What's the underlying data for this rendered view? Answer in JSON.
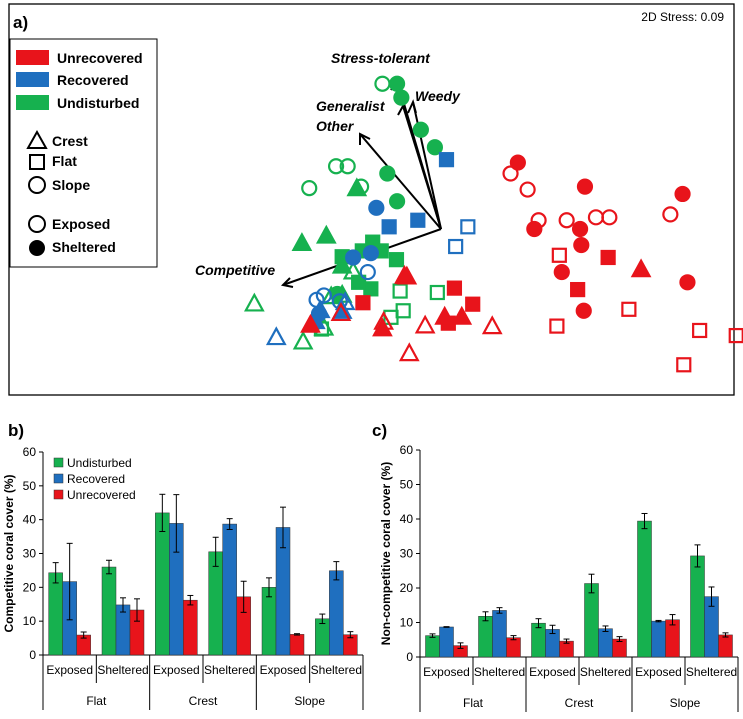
{
  "colors": {
    "undisturbed": "#16b14f",
    "recovered": "#1f6fbf",
    "unrecovered": "#e8141b"
  },
  "chart_data": [
    {
      "panel_label": "a)",
      "type": "scatter",
      "stress_label": "2D Stress: 0.09",
      "legend": {
        "groups": [
          "Unrecovered",
          "Recovered",
          "Undisturbed"
        ],
        "habitats": [
          "Crest",
          "Flat",
          "Slope"
        ],
        "exposure": [
          "Exposed",
          "Sheltered"
        ]
      },
      "vectors": [
        {
          "name": "Stress-tolerant",
          "dx": -0.28,
          "dy": 1.49
        },
        {
          "name": "Weedy",
          "dx": -0.18,
          "dy": 1.16
        },
        {
          "name": "Generalist",
          "dx": -0.35,
          "dy": 1.08
        },
        {
          "name": "Other",
          "dx": -0.8,
          "dy": 0.98
        },
        {
          "name": "Competitive",
          "dx": -1.6,
          "dy": -0.56
        }
      ],
      "points": [
        {
          "x": -0.96,
          "y": 1.99,
          "group": "Undisturbed",
          "habitat": "Slope",
          "exposure": "Exposed"
        },
        {
          "x": -0.72,
          "y": 1.99,
          "group": "Undisturbed",
          "habitat": "Slope",
          "exposure": "Sheltered"
        },
        {
          "x": -0.65,
          "y": 1.8,
          "group": "Undisturbed",
          "habitat": "Slope",
          "exposure": "Sheltered"
        },
        {
          "x": -0.33,
          "y": 1.36,
          "group": "Undisturbed",
          "habitat": "Slope",
          "exposure": "Sheltered"
        },
        {
          "x": -0.1,
          "y": 1.12,
          "group": "Undisturbed",
          "habitat": "Slope",
          "exposure": "Sheltered"
        },
        {
          "x": -1.72,
          "y": 0.86,
          "group": "Undisturbed",
          "habitat": "Slope",
          "exposure": "Exposed"
        },
        {
          "x": -1.53,
          "y": 0.86,
          "group": "Undisturbed",
          "habitat": "Slope",
          "exposure": "Exposed"
        },
        {
          "x": -2.16,
          "y": 0.56,
          "group": "Undisturbed",
          "habitat": "Slope",
          "exposure": "Exposed"
        },
        {
          "x": -1.31,
          "y": 0.58,
          "group": "Undisturbed",
          "habitat": "Slope",
          "exposure": "Exposed"
        },
        {
          "x": -0.88,
          "y": 0.76,
          "group": "Undisturbed",
          "habitat": "Slope",
          "exposure": "Sheltered"
        },
        {
          "x": -0.72,
          "y": 0.38,
          "group": "Undisturbed",
          "habitat": "Slope",
          "exposure": "Sheltered"
        },
        {
          "x": -1.7,
          "y": -0.89,
          "group": "Undisturbed",
          "habitat": "Slope",
          "exposure": "Sheltered"
        },
        {
          "x": -1.38,
          "y": 0.56,
          "group": "Undisturbed",
          "habitat": "Crest",
          "exposure": "Sheltered"
        },
        {
          "x": -1.88,
          "y": -0.09,
          "group": "Undisturbed",
          "habitat": "Crest",
          "exposure": "Sheltered"
        },
        {
          "x": -2.28,
          "y": -0.19,
          "group": "Undisturbed",
          "habitat": "Crest",
          "exposure": "Sheltered"
        },
        {
          "x": -1.62,
          "y": -0.5,
          "group": "Undisturbed",
          "habitat": "Crest",
          "exposure": "Sheltered"
        },
        {
          "x": -1.44,
          "y": -0.58,
          "group": "Undisturbed",
          "habitat": "Crest",
          "exposure": "Exposed"
        },
        {
          "x": -3.06,
          "y": -1.02,
          "group": "Undisturbed",
          "habitat": "Crest",
          "exposure": "Exposed"
        },
        {
          "x": -1.8,
          "y": -0.92,
          "group": "Undisturbed",
          "habitat": "Crest",
          "exposure": "Exposed"
        },
        {
          "x": -1.62,
          "y": -0.9,
          "group": "Undisturbed",
          "habitat": "Crest",
          "exposure": "Exposed"
        },
        {
          "x": -1.92,
          "y": -1.35,
          "group": "Undisturbed",
          "habitat": "Crest",
          "exposure": "Exposed"
        },
        {
          "x": -2.26,
          "y": -1.54,
          "group": "Undisturbed",
          "habitat": "Crest",
          "exposure": "Exposed"
        },
        {
          "x": -1.62,
          "y": -0.38,
          "group": "Undisturbed",
          "habitat": "Flat",
          "exposure": "Sheltered"
        },
        {
          "x": -1.29,
          "y": -0.3,
          "group": "Undisturbed",
          "habitat": "Flat",
          "exposure": "Sheltered"
        },
        {
          "x": -0.98,
          "y": -0.3,
          "group": "Undisturbed",
          "habitat": "Flat",
          "exposure": "Sheltered"
        },
        {
          "x": -0.73,
          "y": -0.42,
          "group": "Undisturbed",
          "habitat": "Flat",
          "exposure": "Sheltered"
        },
        {
          "x": -1.35,
          "y": -0.73,
          "group": "Undisturbed",
          "habitat": "Flat",
          "exposure": "Sheltered"
        },
        {
          "x": -1.15,
          "y": -0.82,
          "group": "Undisturbed",
          "habitat": "Flat",
          "exposure": "Sheltered"
        },
        {
          "x": -1.12,
          "y": -0.18,
          "group": "Undisturbed",
          "habitat": "Flat",
          "exposure": "Sheltered"
        },
        {
          "x": -0.67,
          "y": -0.85,
          "group": "Undisturbed",
          "habitat": "Flat",
          "exposure": "Exposed"
        },
        {
          "x": -0.62,
          "y": -1.12,
          "group": "Undisturbed",
          "habitat": "Flat",
          "exposure": "Exposed"
        },
        {
          "x": -0.82,
          "y": -1.21,
          "group": "Undisturbed",
          "habitat": "Flat",
          "exposure": "Exposed"
        },
        {
          "x": -1.96,
          "y": -1.37,
          "group": "Undisturbed",
          "habitat": "Flat",
          "exposure": "Exposed"
        },
        {
          "x": -0.06,
          "y": -0.87,
          "group": "Undisturbed",
          "habitat": "Flat",
          "exposure": "Exposed"
        },
        {
          "x": -1.06,
          "y": 0.29,
          "group": "Recovered",
          "habitat": "Slope",
          "exposure": "Sheltered"
        },
        {
          "x": -1.15,
          "y": -0.33,
          "group": "Recovered",
          "habitat": "Slope",
          "exposure": "Sheltered"
        },
        {
          "x": -1.44,
          "y": -0.39,
          "group": "Recovered",
          "habitat": "Slope",
          "exposure": "Sheltered"
        },
        {
          "x": -1.2,
          "y": -0.59,
          "group": "Recovered",
          "habitat": "Slope",
          "exposure": "Exposed"
        },
        {
          "x": -2.04,
          "y": -0.97,
          "group": "Recovered",
          "habitat": "Slope",
          "exposure": "Exposed"
        },
        {
          "x": -1.92,
          "y": -0.91,
          "group": "Recovered",
          "habitat": "Slope",
          "exposure": "Exposed"
        },
        {
          "x": -1.66,
          "y": -0.99,
          "group": "Recovered",
          "habitat": "Slope",
          "exposure": "Exposed"
        },
        {
          "x": -2.0,
          "y": -1.16,
          "group": "Recovered",
          "habitat": "Slope",
          "exposure": "Sheltered"
        },
        {
          "x": -1.57,
          "y": -1.0,
          "group": "Recovered",
          "habitat": "Crest",
          "exposure": "Exposed"
        },
        {
          "x": -1.98,
          "y": -1.11,
          "group": "Recovered",
          "habitat": "Crest",
          "exposure": "Sheltered"
        },
        {
          "x": -1.62,
          "y": -1.12,
          "group": "Recovered",
          "habitat": "Crest",
          "exposure": "Sheltered"
        },
        {
          "x": -2.06,
          "y": -1.26,
          "group": "Recovered",
          "habitat": "Crest",
          "exposure": "Sheltered"
        },
        {
          "x": -2.7,
          "y": -1.48,
          "group": "Recovered",
          "habitat": "Crest",
          "exposure": "Exposed"
        },
        {
          "x": 0.09,
          "y": 0.95,
          "group": "Recovered",
          "habitat": "Flat",
          "exposure": "Sheltered"
        },
        {
          "x": -0.38,
          "y": 0.12,
          "group": "Recovered",
          "habitat": "Flat",
          "exposure": "Sheltered"
        },
        {
          "x": -0.85,
          "y": 0.03,
          "group": "Recovered",
          "habitat": "Flat",
          "exposure": "Sheltered"
        },
        {
          "x": 0.44,
          "y": 0.03,
          "group": "Recovered",
          "habitat": "Flat",
          "exposure": "Exposed"
        },
        {
          "x": 0.24,
          "y": -0.24,
          "group": "Recovered",
          "habitat": "Flat",
          "exposure": "Exposed"
        },
        {
          "x": 1.42,
          "y": 0.54,
          "group": "Unrecovered",
          "habitat": "Slope",
          "exposure": "Exposed"
        },
        {
          "x": 1.14,
          "y": 0.76,
          "group": "Unrecovered",
          "habitat": "Slope",
          "exposure": "Exposed"
        },
        {
          "x": 1.26,
          "y": 0.91,
          "group": "Unrecovered",
          "habitat": "Slope",
          "exposure": "Sheltered"
        },
        {
          "x": 2.36,
          "y": 0.58,
          "group": "Unrecovered",
          "habitat": "Slope",
          "exposure": "Sheltered"
        },
        {
          "x": 1.6,
          "y": 0.12,
          "group": "Unrecovered",
          "habitat": "Slope",
          "exposure": "Exposed"
        },
        {
          "x": 2.06,
          "y": 0.12,
          "group": "Unrecovered",
          "habitat": "Slope",
          "exposure": "Exposed"
        },
        {
          "x": 2.54,
          "y": 0.16,
          "group": "Unrecovered",
          "habitat": "Slope",
          "exposure": "Exposed"
        },
        {
          "x": 2.76,
          "y": 0.16,
          "group": "Unrecovered",
          "habitat": "Slope",
          "exposure": "Exposed"
        },
        {
          "x": 3.76,
          "y": 0.2,
          "group": "Unrecovered",
          "habitat": "Slope",
          "exposure": "Exposed"
        },
        {
          "x": 3.96,
          "y": 0.48,
          "group": "Unrecovered",
          "habitat": "Slope",
          "exposure": "Sheltered"
        },
        {
          "x": 1.53,
          "y": 0.0,
          "group": "Unrecovered",
          "habitat": "Slope",
          "exposure": "Sheltered"
        },
        {
          "x": 2.28,
          "y": 0.0,
          "group": "Unrecovered",
          "habitat": "Slope",
          "exposure": "Sheltered"
        },
        {
          "x": 2.3,
          "y": -0.22,
          "group": "Unrecovered",
          "habitat": "Slope",
          "exposure": "Sheltered"
        },
        {
          "x": 1.98,
          "y": -0.59,
          "group": "Unrecovered",
          "habitat": "Slope",
          "exposure": "Sheltered"
        },
        {
          "x": 4.04,
          "y": -0.73,
          "group": "Unrecovered",
          "habitat": "Slope",
          "exposure": "Sheltered"
        },
        {
          "x": 2.34,
          "y": -1.12,
          "group": "Unrecovered",
          "habitat": "Slope",
          "exposure": "Sheltered"
        },
        {
          "x": 2.74,
          "y": -0.39,
          "group": "Unrecovered",
          "habitat": "Flat",
          "exposure": "Sheltered"
        },
        {
          "x": 2.24,
          "y": -0.83,
          "group": "Unrecovered",
          "habitat": "Flat",
          "exposure": "Sheltered"
        },
        {
          "x": 0.22,
          "y": -0.81,
          "group": "Unrecovered",
          "habitat": "Flat",
          "exposure": "Sheltered"
        },
        {
          "x": -1.28,
          "y": -1.01,
          "group": "Unrecovered",
          "habitat": "Flat",
          "exposure": "Sheltered"
        },
        {
          "x": 0.52,
          "y": -1.03,
          "group": "Unrecovered",
          "habitat": "Flat",
          "exposure": "Sheltered"
        },
        {
          "x": 0.12,
          "y": -1.29,
          "group": "Unrecovered",
          "habitat": "Flat",
          "exposure": "Sheltered"
        },
        {
          "x": 1.94,
          "y": -0.36,
          "group": "Unrecovered",
          "habitat": "Flat",
          "exposure": "Exposed"
        },
        {
          "x": 1.9,
          "y": -1.33,
          "group": "Unrecovered",
          "habitat": "Flat",
          "exposure": "Exposed"
        },
        {
          "x": 3.08,
          "y": -1.1,
          "group": "Unrecovered",
          "habitat": "Flat",
          "exposure": "Exposed"
        },
        {
          "x": 4.24,
          "y": -1.39,
          "group": "Unrecovered",
          "habitat": "Flat",
          "exposure": "Exposed"
        },
        {
          "x": 4.84,
          "y": -1.46,
          "group": "Unrecovered",
          "habitat": "Flat",
          "exposure": "Exposed"
        },
        {
          "x": 3.98,
          "y": -1.86,
          "group": "Unrecovered",
          "habitat": "Flat",
          "exposure": "Exposed"
        },
        {
          "x": 3.28,
          "y": -0.55,
          "group": "Unrecovered",
          "habitat": "Crest",
          "exposure": "Sheltered"
        },
        {
          "x": -0.6,
          "y": -0.64,
          "group": "Unrecovered",
          "habitat": "Crest",
          "exposure": "Sheltered"
        },
        {
          "x": 0.06,
          "y": -1.2,
          "group": "Unrecovered",
          "habitat": "Crest",
          "exposure": "Sheltered"
        },
        {
          "x": 0.34,
          "y": -1.2,
          "group": "Unrecovered",
          "habitat": "Crest",
          "exposure": "Sheltered"
        },
        {
          "x": -0.96,
          "y": -1.36,
          "group": "Unrecovered",
          "habitat": "Crest",
          "exposure": "Sheltered"
        },
        {
          "x": -2.14,
          "y": -1.31,
          "group": "Unrecovered",
          "habitat": "Crest",
          "exposure": "Sheltered"
        },
        {
          "x": -0.56,
          "y": -0.65,
          "group": "Unrecovered",
          "habitat": "Crest",
          "exposure": "Exposed"
        },
        {
          "x": -1.64,
          "y": -1.15,
          "group": "Unrecovered",
          "habitat": "Crest",
          "exposure": "Exposed"
        },
        {
          "x": -0.94,
          "y": -1.27,
          "group": "Unrecovered",
          "habitat": "Crest",
          "exposure": "Exposed"
        },
        {
          "x": -0.26,
          "y": -1.32,
          "group": "Unrecovered",
          "habitat": "Crest",
          "exposure": "Exposed"
        },
        {
          "x": 0.84,
          "y": -1.33,
          "group": "Unrecovered",
          "habitat": "Crest",
          "exposure": "Exposed"
        },
        {
          "x": -0.52,
          "y": -1.7,
          "group": "Unrecovered",
          "habitat": "Crest",
          "exposure": "Exposed"
        }
      ]
    },
    {
      "panel_label": "b)",
      "type": "bar",
      "ylabel": "Competitive coral cover (%)",
      "ylim": [
        0,
        60
      ],
      "yticks": [
        0,
        10,
        20,
        30,
        40,
        50,
        60
      ],
      "categories": [
        "Exposed",
        "Sheltered",
        "Exposed",
        "Sheltered",
        "Exposed",
        "Sheltered"
      ],
      "groups": [
        "Flat",
        "Crest",
        "Slope"
      ],
      "legend_position": "top-left",
      "series": [
        {
          "name": "Undisturbed",
          "values": [
            24.3,
            26.0,
            42.0,
            30.5,
            20.0,
            10.7
          ],
          "errors": [
            3.0,
            2.0,
            5.5,
            4.3,
            2.8,
            1.4
          ]
        },
        {
          "name": "Recovered",
          "values": [
            21.7,
            14.8,
            38.9,
            38.7,
            37.7,
            24.9
          ],
          "errors": [
            11.3,
            2.1,
            8.5,
            1.6,
            6.0,
            2.7
          ]
        },
        {
          "name": "Unrecovered",
          "values": [
            5.9,
            13.3,
            16.2,
            17.2,
            6.1,
            6.0
          ],
          "errors": [
            0.9,
            3.3,
            1.4,
            4.6,
            0.2,
            0.9
          ]
        }
      ]
    },
    {
      "panel_label": "c)",
      "type": "bar",
      "ylabel": "Non-competitive coral cover (%)",
      "ylim": [
        0,
        60
      ],
      "yticks": [
        0,
        10,
        20,
        30,
        40,
        50,
        60
      ],
      "categories": [
        "Exposed",
        "Sheltered",
        "Exposed",
        "Sheltered",
        "Exposed",
        "Sheltered"
      ],
      "groups": [
        "Flat",
        "Crest",
        "Slope"
      ],
      "series": [
        {
          "name": "Undisturbed",
          "values": [
            6.2,
            11.8,
            9.8,
            21.3,
            39.4,
            29.3
          ],
          "errors": [
            0.5,
            1.3,
            1.3,
            2.7,
            2.2,
            3.2
          ]
        },
        {
          "name": "Recovered",
          "values": [
            8.7,
            13.5,
            8.0,
            8.2,
            10.4,
            17.5
          ],
          "errors": [
            0.1,
            0.8,
            1.2,
            0.8,
            0.2,
            2.8
          ]
        },
        {
          "name": "Unrecovered",
          "values": [
            3.3,
            5.6,
            4.6,
            5.2,
            10.8,
            6.4
          ],
          "errors": [
            0.8,
            0.6,
            0.6,
            0.7,
            1.5,
            0.6
          ]
        }
      ]
    }
  ]
}
